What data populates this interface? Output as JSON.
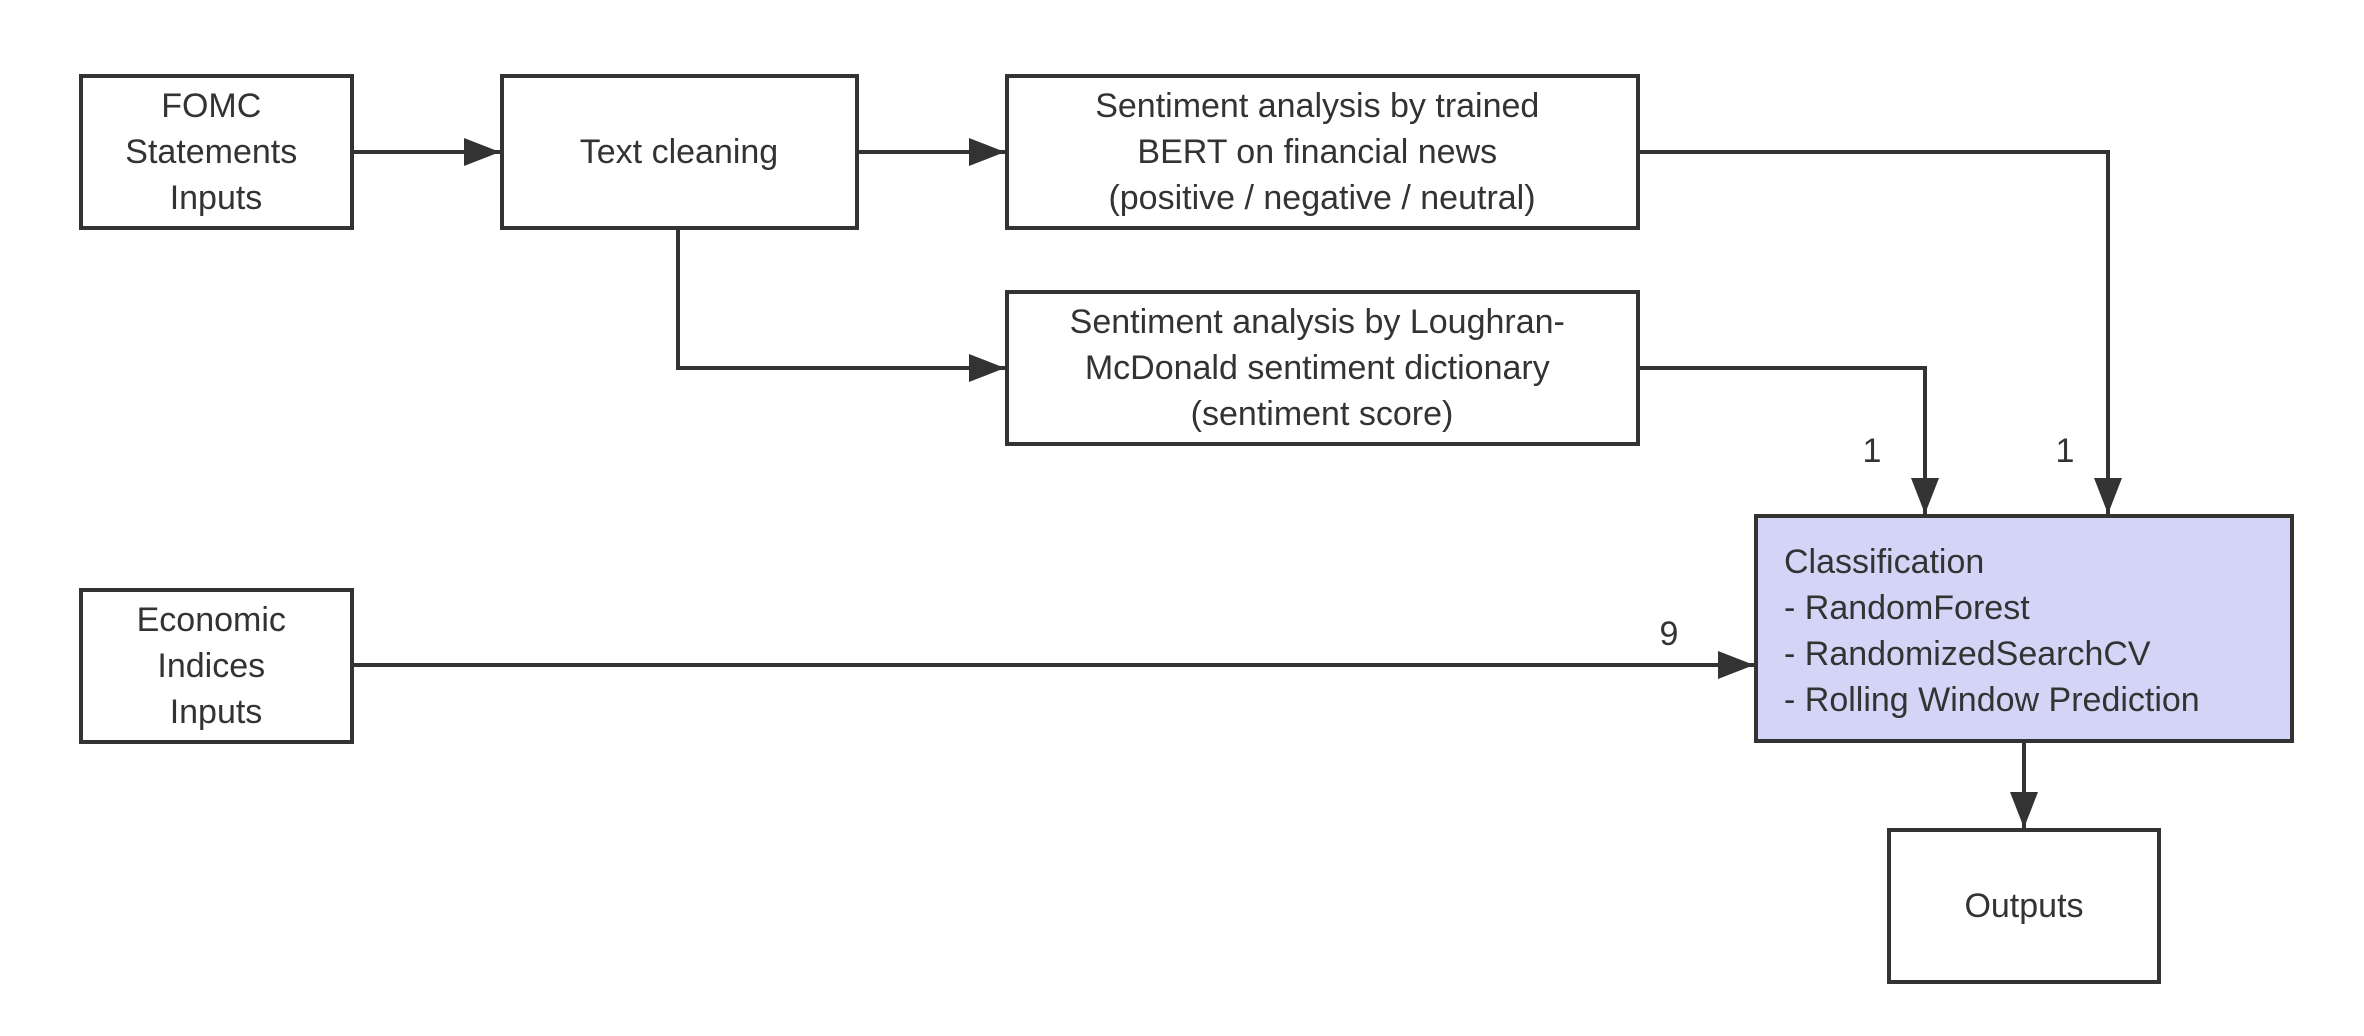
{
  "nodes": {
    "fomc": {
      "lines": [
        "FOMC",
        "Statements",
        "Inputs"
      ]
    },
    "cleaning": {
      "lines": [
        "Text cleaning"
      ]
    },
    "bert": {
      "lines": [
        "Sentiment analysis by trained",
        "BERT on financial news",
        "(positive / negative / neutral)"
      ]
    },
    "lm": {
      "lines": [
        "Sentiment analysis by Loughran-",
        "McDonald sentiment dictionary",
        "(sentiment score)"
      ]
    },
    "econ": {
      "lines": [
        "Economic",
        "Indices",
        "Inputs"
      ]
    },
    "classification": {
      "lines": [
        "Classification",
        "- RandomForest",
        "- RandomizedSearchCV",
        "- Rolling Window Prediction"
      ]
    },
    "outputs": {
      "lines": [
        "Outputs"
      ]
    }
  },
  "edge_labels": {
    "lm_to_classification": "1",
    "bert_to_classification": "1",
    "econ_to_classification": "9"
  },
  "colors": {
    "stroke": "#333333",
    "highlight_fill": "#d4d4f7"
  }
}
